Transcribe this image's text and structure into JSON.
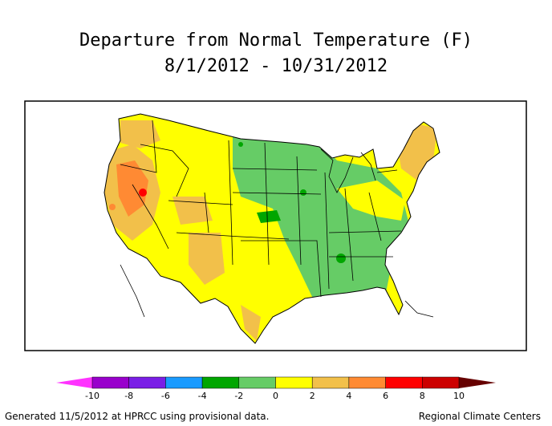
{
  "title": "Departure from Normal Temperature (F)",
  "date_range": "8/1/2012 - 10/31/2012",
  "legend": {
    "ticks": [
      "-10",
      "-8",
      "-6",
      "-4",
      "-2",
      "0",
      "2",
      "4",
      "6",
      "8",
      "10"
    ],
    "colors": [
      "#ff33ff",
      "#9900cc",
      "#7a1ee6",
      "#1a9bff",
      "#00a600",
      "#66cc66",
      "#ffff00",
      "#f2c04a",
      "#ff8a33",
      "#ff0000",
      "#cc0000",
      "#660000"
    ]
  },
  "footer": {
    "left": "Generated 11/5/2012 at HPRCC using provisional data.",
    "right": "Regional Climate Centers"
  }
}
